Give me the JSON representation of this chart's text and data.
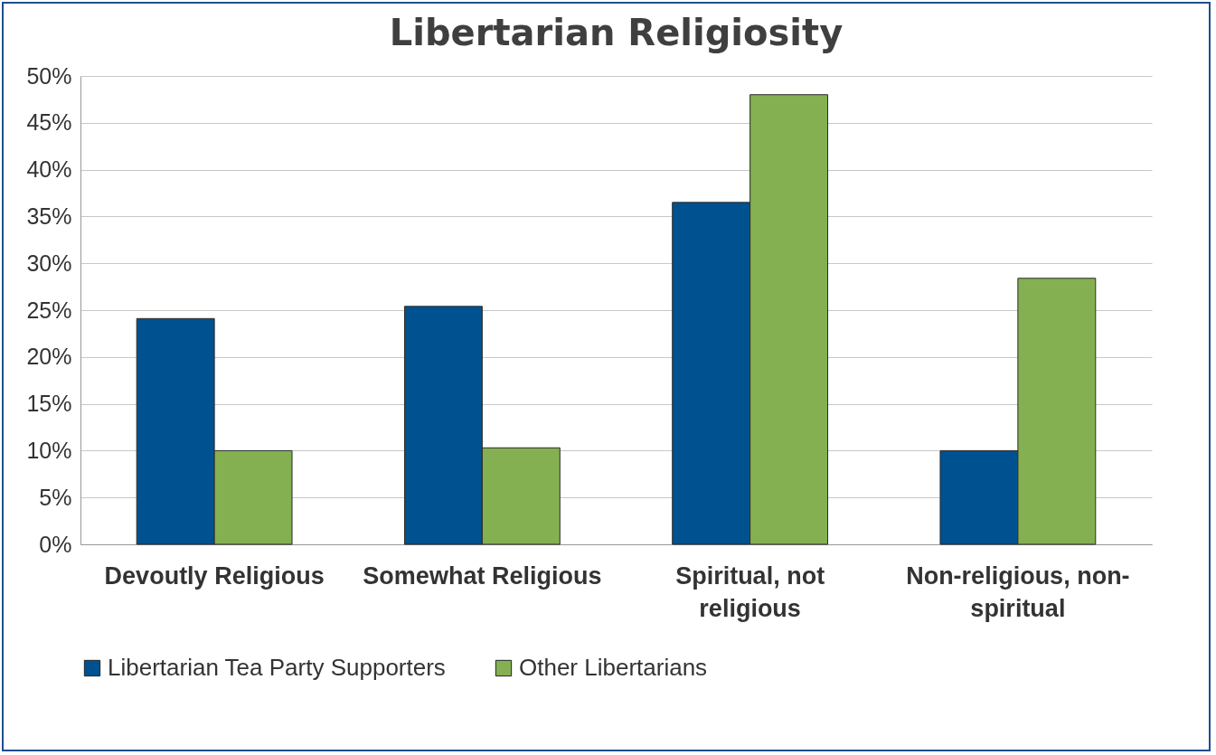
{
  "chart_data": {
    "type": "bar",
    "title": "Libertarian Religiosity",
    "categories": [
      "Devoutly Religious",
      "Somewhat Religious",
      "Spiritual, not religious",
      "Non-religious, non-spiritual"
    ],
    "series": [
      {
        "name": "Libertarian Tea Party Supporters",
        "color": "#00518f",
        "values": [
          24.1,
          25.4,
          36.5,
          10
        ]
      },
      {
        "name": "Other Libertarians",
        "color": "#84b051",
        "values": [
          10,
          10.3,
          48,
          28.4
        ]
      }
    ],
    "ylim": [
      0,
      50
    ],
    "yticks": [
      {
        "value": 0,
        "label": "0%"
      },
      {
        "value": 5,
        "label": "5%"
      },
      {
        "value": 10,
        "label": "10%"
      },
      {
        "value": 15,
        "label": "15%"
      },
      {
        "value": 20,
        "label": "20%"
      },
      {
        "value": 25,
        "label": "25%"
      },
      {
        "value": 30,
        "label": "30%"
      },
      {
        "value": 35,
        "label": "35%"
      },
      {
        "value": 40,
        "label": "40%"
      },
      {
        "value": 45,
        "label": "45%"
      },
      {
        "value": 50,
        "label": "50%"
      }
    ],
    "grid": "y",
    "legend": "bottom"
  }
}
